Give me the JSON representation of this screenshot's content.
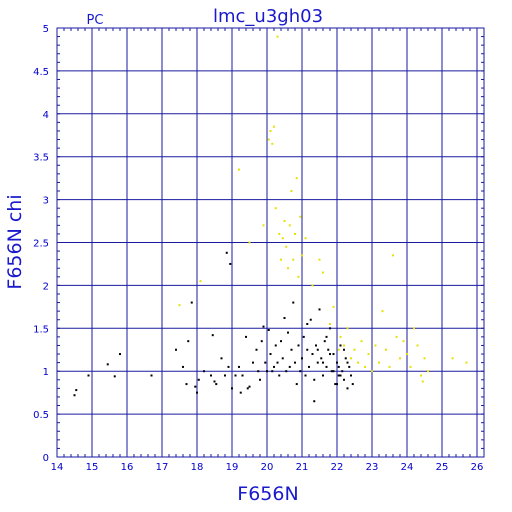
{
  "chart_data": {
    "type": "scatter",
    "title": "lmc_u3gh03",
    "corner_label": "PC",
    "xlabel": "F656N",
    "ylabel": "F656N  chi",
    "xlim": [
      14,
      26.2
    ],
    "ylim": [
      0,
      5
    ],
    "xticks": [
      14,
      15,
      16,
      17,
      18,
      19,
      20,
      21,
      22,
      23,
      24,
      25,
      26
    ],
    "yticks": [
      0,
      0.5,
      1,
      1.5,
      2,
      2.5,
      3,
      3.5,
      4,
      4.5,
      5
    ],
    "ytick_labels": [
      "0",
      "0.5",
      "1",
      "1.5",
      "2",
      "2.5",
      "3",
      "3.5",
      "4",
      "4.5",
      "5"
    ],
    "grid": true,
    "colors": {
      "grid": "#1a1aa0",
      "text": "#1a1acc",
      "series_black": "#000000",
      "series_yellow": "#e8e000"
    },
    "series": [
      {
        "color": "#000000",
        "points": [
          [
            14.5,
            0.72
          ],
          [
            14.55,
            0.78
          ],
          [
            14.9,
            0.95
          ],
          [
            15.45,
            1.08
          ],
          [
            15.65,
            0.94
          ],
          [
            15.8,
            1.2
          ],
          [
            16.7,
            0.95
          ],
          [
            17.4,
            1.25
          ],
          [
            17.6,
            1.05
          ],
          [
            17.7,
            0.85
          ],
          [
            17.75,
            1.35
          ],
          [
            17.85,
            1.8
          ],
          [
            17.95,
            0.82
          ],
          [
            18.0,
            0.75
          ],
          [
            18.05,
            0.9
          ],
          [
            18.2,
            1.0
          ],
          [
            18.4,
            0.95
          ],
          [
            18.45,
            1.42
          ],
          [
            18.5,
            0.88
          ],
          [
            18.55,
            0.85
          ],
          [
            18.7,
            1.15
          ],
          [
            18.8,
            0.95
          ],
          [
            18.85,
            2.38
          ],
          [
            18.9,
            1.05
          ],
          [
            18.95,
            2.25
          ],
          [
            19.0,
            0.8
          ],
          [
            19.1,
            0.95
          ],
          [
            19.2,
            1.05
          ],
          [
            19.25,
            0.75
          ],
          [
            19.3,
            0.95
          ],
          [
            19.4,
            1.4
          ],
          [
            19.45,
            0.8
          ],
          [
            19.5,
            0.82
          ],
          [
            19.6,
            1.1
          ],
          [
            19.7,
            1.25
          ],
          [
            19.75,
            1.0
          ],
          [
            19.8,
            0.9
          ],
          [
            19.85,
            1.35
          ],
          [
            19.9,
            1.52
          ],
          [
            19.95,
            1.1
          ],
          [
            20.0,
            1.0
          ],
          [
            20.05,
            1.48
          ],
          [
            20.1,
            1.2
          ],
          [
            20.15,
            1.0
          ],
          [
            20.2,
            1.05
          ],
          [
            20.25,
            1.3
          ],
          [
            20.3,
            1.1
          ],
          [
            20.35,
            0.95
          ],
          [
            20.4,
            1.35
          ],
          [
            20.45,
            1.15
          ],
          [
            20.5,
            1.62
          ],
          [
            20.55,
            1.0
          ],
          [
            20.6,
            1.45
          ],
          [
            20.65,
            1.05
          ],
          [
            20.7,
            1.25
          ],
          [
            20.75,
            1.8
          ],
          [
            20.8,
            1.1
          ],
          [
            20.85,
            0.85
          ],
          [
            20.9,
            1.3
          ],
          [
            20.95,
            1.0
          ],
          [
            21.0,
            1.15
          ],
          [
            21.05,
            1.4
          ],
          [
            21.1,
            0.95
          ],
          [
            21.15,
            1.25
          ],
          [
            21.2,
            1.05
          ],
          [
            21.25,
            1.6
          ],
          [
            21.3,
            1.2
          ],
          [
            21.35,
            0.9
          ],
          [
            21.4,
            1.3
          ],
          [
            21.45,
            1.1
          ],
          [
            21.5,
            1.72
          ],
          [
            21.55,
            1.15
          ],
          [
            21.6,
            0.95
          ],
          [
            21.65,
            1.35
          ],
          [
            21.7,
            1.05
          ],
          [
            21.75,
            1.25
          ],
          [
            21.8,
            1.5
          ],
          [
            21.85,
            1.0
          ],
          [
            21.9,
            1.2
          ],
          [
            21.95,
            0.85
          ],
          [
            22.0,
            1.1
          ],
          [
            22.05,
            0.95
          ],
          [
            22.1,
            1.3
          ],
          [
            22.15,
            1.0
          ],
          [
            22.2,
            0.9
          ],
          [
            22.25,
            1.15
          ],
          [
            22.3,
            0.8
          ],
          [
            22.35,
            1.05
          ],
          [
            22.4,
            0.95
          ],
          [
            22.45,
            0.85
          ],
          [
            21.15,
            1.55
          ],
          [
            21.35,
            0.65
          ],
          [
            21.6,
            1.1
          ],
          [
            21.8,
            1.2
          ],
          [
            22.05,
            1.05
          ],
          [
            22.2,
            1.25
          ],
          [
            21.9,
            1.0
          ],
          [
            22.1,
            0.95
          ],
          [
            22.3,
            1.1
          ],
          [
            22.0,
            0.85
          ],
          [
            21.7,
            1.4
          ],
          [
            21.45,
            1.25
          ]
        ]
      },
      {
        "color": "#e8e000",
        "points": [
          [
            17.5,
            1.77
          ],
          [
            18.1,
            2.05
          ],
          [
            19.2,
            3.35
          ],
          [
            19.5,
            2.5
          ],
          [
            19.9,
            2.7
          ],
          [
            20.05,
            3.7
          ],
          [
            20.1,
            3.8
          ],
          [
            20.15,
            3.65
          ],
          [
            20.2,
            3.85
          ],
          [
            20.25,
            2.9
          ],
          [
            20.3,
            4.9
          ],
          [
            20.35,
            2.6
          ],
          [
            20.4,
            2.3
          ],
          [
            20.45,
            2.55
          ],
          [
            20.5,
            2.75
          ],
          [
            20.55,
            2.45
          ],
          [
            20.6,
            2.2
          ],
          [
            20.65,
            2.7
          ],
          [
            20.7,
            3.1
          ],
          [
            20.75,
            2.3
          ],
          [
            20.8,
            2.6
          ],
          [
            20.85,
            3.25
          ],
          [
            20.9,
            2.1
          ],
          [
            20.95,
            2.8
          ],
          [
            21.0,
            2.35
          ],
          [
            21.1,
            2.55
          ],
          [
            21.3,
            2.0
          ],
          [
            21.5,
            2.3
          ],
          [
            21.6,
            2.15
          ],
          [
            21.8,
            1.55
          ],
          [
            21.9,
            1.75
          ],
          [
            22.05,
            1.25
          ],
          [
            22.1,
            1.4
          ],
          [
            22.2,
            1.3
          ],
          [
            22.3,
            1.5
          ],
          [
            22.4,
            1.15
          ],
          [
            22.5,
            1.25
          ],
          [
            22.6,
            1.1
          ],
          [
            22.7,
            1.35
          ],
          [
            22.8,
            1.05
          ],
          [
            22.9,
            1.2
          ],
          [
            23.0,
            1.0
          ],
          [
            23.1,
            1.3
          ],
          [
            23.2,
            1.1
          ],
          [
            23.3,
            1.7
          ],
          [
            23.4,
            1.25
          ],
          [
            23.5,
            1.05
          ],
          [
            23.6,
            2.35
          ],
          [
            23.7,
            1.4
          ],
          [
            23.8,
            1.15
          ],
          [
            23.9,
            1.35
          ],
          [
            24.0,
            1.2
          ],
          [
            24.1,
            1.05
          ],
          [
            24.2,
            1.5
          ],
          [
            24.3,
            1.3
          ],
          [
            24.4,
            0.95
          ],
          [
            24.45,
            0.88
          ],
          [
            24.5,
            1.15
          ],
          [
            24.6,
            1.0
          ],
          [
            25.3,
            1.15
          ],
          [
            25.7,
            1.1
          ]
        ]
      }
    ]
  }
}
